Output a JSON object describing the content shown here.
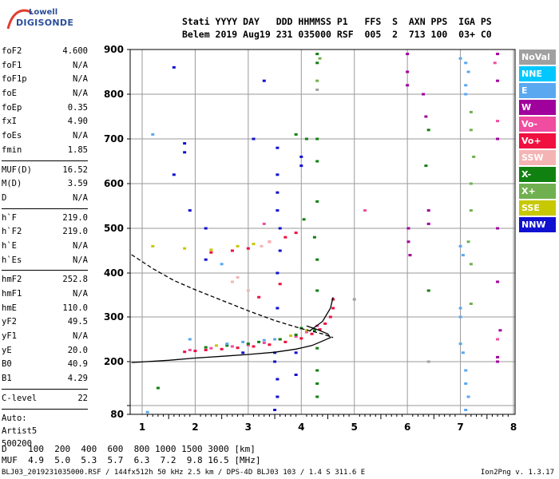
{
  "logo": {
    "top": "Lowell",
    "main": "DIGISONDE"
  },
  "header": {
    "line1": "Stati YYYY DAY   DDD HHMMSS P1   FFS  S  AXN PPS  IGA PS",
    "line2": "Belem 2019 Aug19 231 035000 RSF  005  2  713 100  03+ C0"
  },
  "params": {
    "group1": [
      {
        "label": "foF2",
        "value": "4.600"
      },
      {
        "label": "foF1",
        "value": "N/A"
      },
      {
        "label": "foF1p",
        "value": "N/A"
      },
      {
        "label": "foE",
        "value": "N/A"
      },
      {
        "label": "foEp",
        "value": "0.35"
      },
      {
        "label": "fxI",
        "value": "4.90"
      },
      {
        "label": "foEs",
        "value": "N/A"
      },
      {
        "label": "fmin",
        "value": "1.85"
      }
    ],
    "group2": [
      {
        "label": "MUF(D)",
        "value": "16.52"
      },
      {
        "label": "M(D)",
        "value": "3.59"
      },
      {
        "label": "D",
        "value": "N/A"
      }
    ],
    "group3": [
      {
        "label": "h`F",
        "value": "219.0"
      },
      {
        "label": "h`F2",
        "value": "219.0"
      },
      {
        "label": "h`E",
        "value": "N/A"
      },
      {
        "label": "h`Es",
        "value": "N/A"
      }
    ],
    "group4": [
      {
        "label": "hmF2",
        "value": "252.8"
      },
      {
        "label": "hmF1",
        "value": "N/A"
      },
      {
        "label": "hmE",
        "value": "110.0"
      },
      {
        "label": "yF2",
        "value": "49.5"
      },
      {
        "label": "yF1",
        "value": "N/A"
      },
      {
        "label": "yE",
        "value": "20.0"
      },
      {
        "label": "B0",
        "value": "40.9"
      },
      {
        "label": "B1",
        "value": "4.29"
      }
    ],
    "group5": [
      {
        "label": "C-level",
        "value": "22"
      }
    ],
    "auto": [
      "Auto:",
      "Artist5",
      "500200"
    ]
  },
  "legend": [
    {
      "label": "NoVal",
      "color": "#a0a0a0"
    },
    {
      "label": "NNE",
      "color": "#00c8ff"
    },
    {
      "label": "E",
      "color": "#5aa8f0"
    },
    {
      "label": "W",
      "color": "#a0009c"
    },
    {
      "label": "Vo-",
      "color": "#f04ca0"
    },
    {
      "label": "Vo+",
      "color": "#f01040"
    },
    {
      "label": "SSW",
      "color": "#f4b4b4"
    },
    {
      "label": "X-",
      "color": "#108010"
    },
    {
      "label": "X+",
      "color": "#70b050"
    },
    {
      "label": "SSE",
      "color": "#c8c800"
    },
    {
      "label": "NNW",
      "color": "#1010d0"
    }
  ],
  "bottom": {
    "line1": "D    100  200  400  600  800 1000 1500 3000 [km]",
    "line2": "MUF  4.9  5.0  5.3  5.7  6.3  7.2  9.8 16.5 [MHz]"
  },
  "footer": {
    "left": "BLJ03_2019231035000.RSF / 144fx512h 50 kHz 2.5 km / DPS-4D BLJ03 103 / 1.4 S 311.6 E",
    "right": "Ion2Png v. 1.3.17"
  },
  "chart_data": {
    "type": "scatter",
    "xlabel": "",
    "ylabel": "",
    "x_ticks": [
      1,
      2,
      3,
      4,
      5,
      6,
      7,
      8
    ],
    "y_ticks": [
      80,
      100,
      200,
      300,
      400,
      500,
      600,
      700,
      800,
      900
    ],
    "y_tick_labels": [
      "80",
      "",
      "200",
      "300",
      "400",
      "500",
      "600",
      "700",
      "800",
      "900"
    ],
    "xlim": [
      0.8,
      8.0
    ],
    "ylim": [
      80,
      900
    ],
    "y_scale": "quadratic-like",
    "grid": true,
    "traces": [
      {
        "name": "trace-fitted-solid",
        "style": "solid",
        "color": "#000000",
        "points": [
          [
            0.8,
            198
          ],
          [
            1.5,
            203
          ],
          [
            2.0,
            208
          ],
          [
            2.5,
            212
          ],
          [
            3.0,
            216
          ],
          [
            3.5,
            221
          ],
          [
            3.9,
            228
          ],
          [
            4.2,
            236
          ],
          [
            4.4,
            246
          ],
          [
            4.55,
            254
          ],
          [
            4.5,
            262
          ],
          [
            4.3,
            272
          ],
          [
            4.1,
            280
          ]
        ]
      },
      {
        "name": "trace-profile-dashed",
        "style": "dashed",
        "color": "#000000",
        "points": [
          [
            0.8,
            441
          ],
          [
            1.2,
            410
          ],
          [
            1.6,
            383
          ],
          [
            2.0,
            362
          ],
          [
            2.5,
            338
          ],
          [
            3.0,
            314
          ],
          [
            3.5,
            292
          ],
          [
            4.0,
            274
          ],
          [
            4.4,
            262
          ],
          [
            4.6,
            254
          ]
        ]
      },
      {
        "name": "trace-right-curve",
        "style": "solid",
        "color": "#000000",
        "points": [
          [
            4.15,
            268
          ],
          [
            4.4,
            290
          ],
          [
            4.55,
            320
          ],
          [
            4.6,
            345
          ]
        ]
      }
    ],
    "echo_groups": [
      {
        "series": "Vo+",
        "points": [
          [
            1.8,
            222
          ],
          [
            2.0,
            224
          ],
          [
            2.2,
            226
          ],
          [
            2.5,
            228
          ],
          [
            2.8,
            231
          ],
          [
            3.1,
            234
          ],
          [
            3.4,
            238
          ],
          [
            3.7,
            244
          ],
          [
            4.0,
            252
          ],
          [
            4.2,
            262
          ],
          [
            4.35,
            272
          ],
          [
            4.45,
            285
          ],
          [
            4.55,
            300
          ],
          [
            4.6,
            320
          ],
          [
            4.6,
            340
          ]
        ]
      },
      {
        "series": "Vo-",
        "points": [
          [
            1.9,
            226
          ],
          [
            2.3,
            230
          ],
          [
            2.7,
            234
          ],
          [
            3.0,
            237
          ],
          [
            3.3,
            242
          ],
          [
            3.6,
            250
          ],
          [
            3.9,
            256
          ],
          [
            4.1,
            266
          ],
          [
            4.3,
            280
          ]
        ]
      },
      {
        "series": "X-",
        "points": [
          [
            2.2,
            232
          ],
          [
            2.6,
            236
          ],
          [
            3.0,
            240
          ],
          [
            3.2,
            244
          ],
          [
            3.6,
            250
          ],
          [
            3.9,
            260
          ],
          [
            4.0,
            275
          ]
        ]
      },
      {
        "series": "E",
        "points": [
          [
            2.6,
            240
          ],
          [
            2.9,
            244
          ],
          [
            3.3,
            248
          ],
          [
            3.5,
            250
          ]
        ]
      },
      {
        "series": "SSE",
        "points": [
          [
            2.4,
            236
          ],
          [
            3.8,
            258
          ],
          [
            4.1,
            270
          ],
          [
            1.2,
            460
          ],
          [
            1.8,
            455
          ],
          [
            2.3,
            452
          ],
          [
            2.8,
            460
          ],
          [
            3.1,
            465
          ]
        ]
      },
      {
        "series": "Vo+",
        "points": [
          [
            2.3,
            446
          ],
          [
            2.7,
            450
          ],
          [
            3.0,
            455
          ],
          [
            3.4,
            470
          ],
          [
            3.7,
            480
          ],
          [
            3.9,
            490
          ],
          [
            3.6,
            375
          ],
          [
            3.2,
            345
          ]
        ]
      },
      {
        "series": "W",
        "points": [
          [
            6.0,
            890
          ],
          [
            6.0,
            850
          ],
          [
            6.0,
            820
          ],
          [
            6.02,
            500
          ],
          [
            6.02,
            470
          ],
          [
            6.05,
            440
          ],
          [
            6.3,
            800
          ],
          [
            6.35,
            750
          ],
          [
            6.4,
            540
          ],
          [
            6.4,
            510
          ],
          [
            7.7,
            890
          ],
          [
            7.7,
            830
          ],
          [
            7.7,
            700
          ],
          [
            7.7,
            500
          ],
          [
            7.7,
            380
          ],
          [
            7.75,
            270
          ],
          [
            7.7,
            210
          ],
          [
            7.7,
            200
          ]
        ]
      },
      {
        "series": "E",
        "points": [
          [
            7.0,
            880
          ],
          [
            7.1,
            870
          ],
          [
            7.15,
            850
          ],
          [
            7.1,
            820
          ],
          [
            7.1,
            800
          ],
          [
            7.0,
            460
          ],
          [
            7.05,
            440
          ],
          [
            7.0,
            320
          ],
          [
            7.0,
            300
          ],
          [
            7.0,
            240
          ],
          [
            7.05,
            220
          ],
          [
            7.1,
            180
          ],
          [
            7.1,
            150
          ],
          [
            7.15,
            120
          ],
          [
            7.1,
            90
          ],
          [
            1.1,
            85
          ],
          [
            1.2,
            710
          ],
          [
            1.9,
            250
          ],
          [
            2.5,
            420
          ]
        ]
      },
      {
        "series": "NNW",
        "points": [
          [
            3.55,
            680
          ],
          [
            3.55,
            620
          ],
          [
            3.55,
            580
          ],
          [
            3.55,
            540
          ],
          [
            3.6,
            500
          ],
          [
            3.6,
            450
          ],
          [
            3.55,
            400
          ],
          [
            3.55,
            320
          ],
          [
            3.5,
            220
          ],
          [
            3.5,
            200
          ],
          [
            3.55,
            160
          ],
          [
            3.55,
            120
          ],
          [
            3.5,
            90
          ],
          [
            4.0,
            660
          ],
          [
            4.0,
            640
          ],
          [
            1.8,
            690
          ],
          [
            1.8,
            670
          ],
          [
            1.9,
            540
          ],
          [
            2.2,
            430
          ],
          [
            2.2,
            500
          ],
          [
            1.6,
            620
          ],
          [
            1.6,
            860
          ],
          [
            3.9,
            220
          ],
          [
            3.9,
            170
          ],
          [
            3.1,
            700
          ],
          [
            3.3,
            830
          ],
          [
            2.9,
            220
          ]
        ]
      },
      {
        "series": "X-",
        "points": [
          [
            4.3,
            890
          ],
          [
            4.3,
            870
          ],
          [
            4.3,
            700
          ],
          [
            4.3,
            650
          ],
          [
            4.3,
            560
          ],
          [
            4.25,
            480
          ],
          [
            4.3,
            430
          ],
          [
            4.3,
            360
          ],
          [
            4.25,
            270
          ],
          [
            4.3,
            230
          ],
          [
            4.3,
            180
          ],
          [
            4.3,
            150
          ],
          [
            4.3,
            120
          ],
          [
            4.1,
            700
          ],
          [
            3.9,
            710
          ],
          [
            6.4,
            720
          ],
          [
            6.35,
            640
          ],
          [
            6.4,
            360
          ],
          [
            4.05,
            520
          ],
          [
            1.3,
            140
          ]
        ]
      },
      {
        "series": "X+",
        "points": [
          [
            4.35,
            880
          ],
          [
            4.3,
            830
          ],
          [
            7.2,
            760
          ],
          [
            7.2,
            720
          ],
          [
            7.25,
            660
          ],
          [
            7.2,
            600
          ],
          [
            7.2,
            540
          ],
          [
            7.15,
            470
          ],
          [
            7.2,
            420
          ],
          [
            7.2,
            330
          ]
        ]
      },
      {
        "series": "SSW",
        "points": [
          [
            3.25,
            460
          ],
          [
            3.4,
            470
          ],
          [
            2.7,
            380
          ],
          [
            2.8,
            390
          ],
          [
            3.0,
            360
          ]
        ]
      },
      {
        "series": "Vo-",
        "points": [
          [
            5.2,
            540
          ],
          [
            7.65,
            870
          ],
          [
            7.7,
            740
          ],
          [
            7.7,
            250
          ],
          [
            3.3,
            510
          ]
        ]
      },
      {
        "series": "NoVal",
        "points": [
          [
            5.0,
            340
          ],
          [
            4.3,
            810
          ],
          [
            6.4,
            200
          ]
        ]
      }
    ]
  }
}
